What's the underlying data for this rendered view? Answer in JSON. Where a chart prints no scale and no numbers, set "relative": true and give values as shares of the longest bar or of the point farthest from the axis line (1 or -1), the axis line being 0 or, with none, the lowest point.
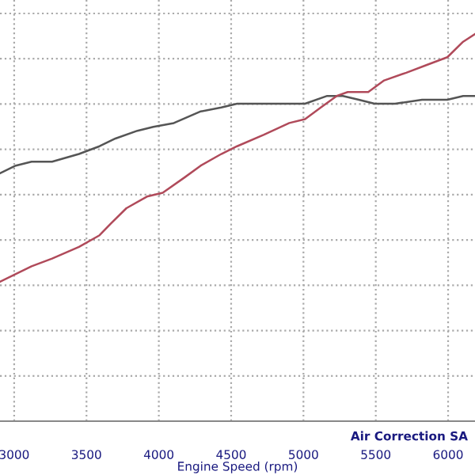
{
  "chart_data": {
    "type": "line",
    "relative": true,
    "xlabel": "Engine Speed (rpm)",
    "annotations": [
      "Air Correction SA"
    ],
    "xlim": [
      2902,
      6186
    ],
    "xticks": [
      3000,
      3500,
      4000,
      4500,
      5000,
      5500,
      6000
    ],
    "grid": true,
    "tick_labels": "x",
    "line_style": "solid",
    "series": [
      {
        "color": "#555555",
        "x": [
          2902,
          3011,
          3120,
          3262,
          3448,
          3590,
          3700,
          3852,
          3962,
          4104,
          4290,
          4432,
          4541,
          4727,
          4902,
          5011,
          5164,
          5273,
          5383,
          5492,
          5634,
          5820,
          5995,
          6104,
          6186
        ],
        "values": [
          0.64,
          0.66,
          0.67,
          0.67,
          0.69,
          0.71,
          0.73,
          0.75,
          0.76,
          0.77,
          0.8,
          0.81,
          0.82,
          0.82,
          0.82,
          0.82,
          0.84,
          0.84,
          0.83,
          0.82,
          0.82,
          0.83,
          0.83,
          0.84,
          0.84
        ]
      },
      {
        "color": "#b04a5a",
        "x": [
          2902,
          3011,
          3120,
          3262,
          3448,
          3590,
          3667,
          3776,
          3918,
          4027,
          4180,
          4290,
          4432,
          4541,
          4727,
          4902,
          5011,
          5120,
          5230,
          5306,
          5448,
          5558,
          5711,
          5853,
          5995,
          6104,
          6186
        ],
        "values": [
          0.36,
          0.38,
          0.4,
          0.42,
          0.45,
          0.48,
          0.51,
          0.55,
          0.58,
          0.59,
          0.63,
          0.66,
          0.69,
          0.71,
          0.74,
          0.77,
          0.78,
          0.81,
          0.84,
          0.85,
          0.85,
          0.88,
          0.9,
          0.92,
          0.94,
          0.98,
          1
        ]
      }
    ]
  }
}
